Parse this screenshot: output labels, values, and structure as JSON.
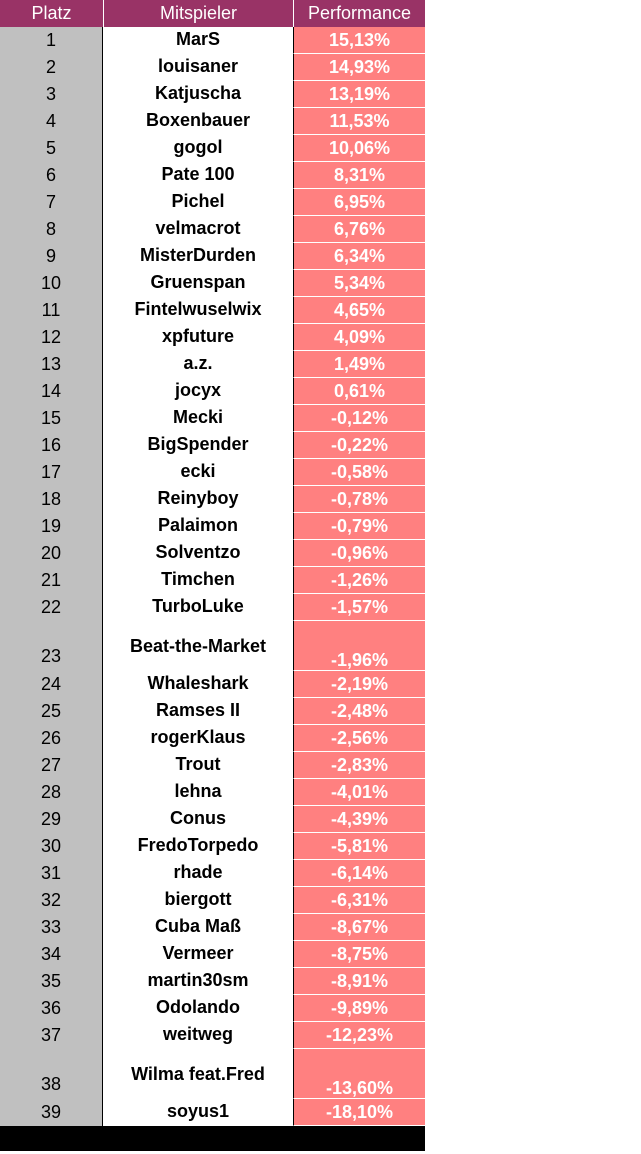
{
  "headers": {
    "rank": "Platz",
    "player": "Mitspieler",
    "performance": "Performance"
  },
  "rows": [
    {
      "rank": "1",
      "player": "MarS",
      "performance": "15,13%"
    },
    {
      "rank": "2",
      "player": "louisaner",
      "performance": "14,93%"
    },
    {
      "rank": "3",
      "player": "Katjuscha",
      "performance": "13,19%"
    },
    {
      "rank": "4",
      "player": "Boxenbauer",
      "performance": "11,53%"
    },
    {
      "rank": "5",
      "player": "gogol",
      "performance": "10,06%"
    },
    {
      "rank": "6",
      "player": "Pate 100",
      "performance": "8,31%"
    },
    {
      "rank": "7",
      "player": "Pichel",
      "performance": "6,95%"
    },
    {
      "rank": "8",
      "player": "velmacrot",
      "performance": "6,76%"
    },
    {
      "rank": "9",
      "player": "MisterDurden",
      "performance": "6,34%"
    },
    {
      "rank": "10",
      "player": "Gruenspan",
      "performance": "5,34%"
    },
    {
      "rank": "11",
      "player": "Fintelwuselwix",
      "performance": "4,65%"
    },
    {
      "rank": "12",
      "player": "xpfuture",
      "performance": "4,09%"
    },
    {
      "rank": "13",
      "player": "a.z.",
      "performance": "1,49%"
    },
    {
      "rank": "14",
      "player": "jocyx",
      "performance": "0,61%"
    },
    {
      "rank": "15",
      "player": "Mecki",
      "performance": "-0,12%"
    },
    {
      "rank": "16",
      "player": "BigSpender",
      "performance": "-0,22%"
    },
    {
      "rank": "17",
      "player": "ecki",
      "performance": "-0,58%"
    },
    {
      "rank": "18",
      "player": "Reinyboy",
      "performance": "-0,78%"
    },
    {
      "rank": "19",
      "player": "Palaimon",
      "performance": "-0,79%"
    },
    {
      "rank": "20",
      "player": "Solventzo",
      "performance": "-0,96%"
    },
    {
      "rank": "21",
      "player": "Timchen",
      "performance": "-1,26%"
    },
    {
      "rank": "22",
      "player": "TurboLuke",
      "performance": "-1,57%"
    },
    {
      "rank": "23",
      "player": "Beat-the-Market",
      "performance": "-1,96%"
    },
    {
      "rank": "24",
      "player": "Whaleshark",
      "performance": "-2,19%"
    },
    {
      "rank": "25",
      "player": "Ramses II",
      "performance": "-2,48%"
    },
    {
      "rank": "26",
      "player": "rogerKlaus",
      "performance": "-2,56%"
    },
    {
      "rank": "27",
      "player": "Trout",
      "performance": "-2,83%"
    },
    {
      "rank": "28",
      "player": "lehna",
      "performance": "-4,01%"
    },
    {
      "rank": "29",
      "player": "Conus",
      "performance": "-4,39%"
    },
    {
      "rank": "30",
      "player": "FredoTorpedo",
      "performance": "-5,81%"
    },
    {
      "rank": "31",
      "player": "rhade",
      "performance": "-6,14%"
    },
    {
      "rank": "32",
      "player": "biergott",
      "performance": "-6,31%"
    },
    {
      "rank": "33",
      "player": "Cuba Maß",
      "performance": "-8,67%"
    },
    {
      "rank": "34",
      "player": "Vermeer",
      "performance": "-8,75%"
    },
    {
      "rank": "35",
      "player": "martin30sm",
      "performance": "-8,91%"
    },
    {
      "rank": "36",
      "player": "Odolando",
      "performance": "-9,89%"
    },
    {
      "rank": "37",
      "player": "weitweg",
      "performance": "-12,23%"
    },
    {
      "rank": "38",
      "player": "Wilma feat.Fred",
      "performance": "-13,60%"
    },
    {
      "rank": "39",
      "player": "soyus1",
      "performance": "-18,10%"
    }
  ],
  "colors": {
    "header_bg": "#993366",
    "rank_bg": "#c0c0c0",
    "performance_bg": "#ff8080",
    "footer_bg": "#000000"
  }
}
